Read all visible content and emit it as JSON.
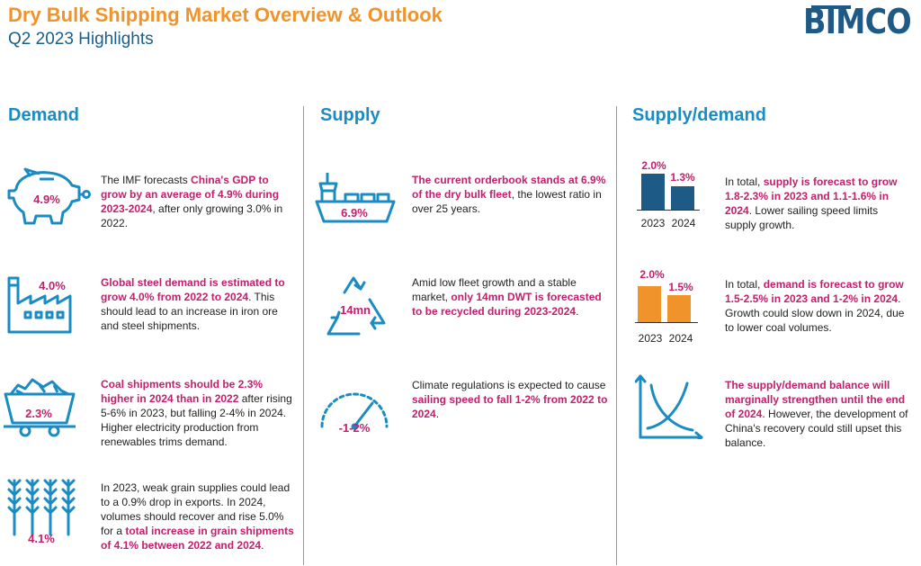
{
  "header": {
    "title": "Dry Bulk Shipping Market Overview & Outlook",
    "subtitle": "Q2 2023 Highlights",
    "logo_text": "BIMCO"
  },
  "colors": {
    "accent": "#f0932b",
    "blue": "#1a8cc3",
    "navy": "#1e5a86",
    "highlight": "#c41e6c"
  },
  "demand": {
    "heading": "Demand",
    "items": [
      {
        "icon": "piggy-bank-icon",
        "value": "4.9%",
        "parts": [
          "The IMF forecasts ",
          "China's GDP to grow by an average of 4.9% during 2023-2024",
          ", after only growing 3.0% in 2022."
        ]
      },
      {
        "icon": "factory-icon",
        "value": "4.0%",
        "parts": [
          "",
          "Global steel demand is estimated to grow 4.0% from 2022 to 2024",
          ". This should lead to an increase in iron ore and steel shipments."
        ]
      },
      {
        "icon": "coal-cart-icon",
        "value": "2.3%",
        "parts": [
          "",
          "Coal shipments should be 2.3% higher in 2024 than in 2022",
          " after rising 5-6% in 2023, but falling 2-4% in 2024. Higher electricity production from renewables trims demand."
        ]
      },
      {
        "icon": "wheat-icon",
        "value": "4.1%",
        "parts": [
          "In 2023, weak grain supplies could lead to a 0.9% drop in exports. In 2024, volumes should recover and rise 5.0% for a ",
          "total increase in grain shipments of 4.1% between 2022 and 2024",
          "."
        ]
      }
    ]
  },
  "supply": {
    "heading": "Supply",
    "items": [
      {
        "icon": "ship-icon",
        "value": "6.9%",
        "parts": [
          "",
          "The current orderbook stands at 6.9% of the dry bulk fleet",
          ", the lowest ratio in over 25 years."
        ]
      },
      {
        "icon": "recycle-icon",
        "value": "14mn",
        "parts": [
          "Amid low fleet growth and a stable market, ",
          "only 14mn DWT is forecasted to be recycled during 2023-2024",
          "."
        ]
      },
      {
        "icon": "speedometer-icon",
        "value": "-1-2%",
        "parts": [
          "Climate regulations is expected to cause ",
          "sailing speed to fall 1-2% from 2022 to 2024",
          "."
        ]
      }
    ]
  },
  "supply_demand": {
    "heading": "Supply/demand",
    "charts": [
      {
        "name": "supply",
        "color": "#1e5a86",
        "values": [
          2.0,
          1.3
        ],
        "labels": [
          "2.0%",
          "1.3%"
        ],
        "years": [
          "2023",
          "2024"
        ],
        "parts": [
          "In total, ",
          "supply is forecast to grow 1.8-2.3% in 2023 and 1.1-1.6% in 2024",
          ". Lower sailing speed limits supply growth."
        ]
      },
      {
        "name": "demand",
        "color": "#f0932b",
        "values": [
          2.0,
          1.5
        ],
        "labels": [
          "2.0%",
          "1.5%"
        ],
        "years": [
          "2023",
          "2024"
        ],
        "parts": [
          "In total, ",
          "demand is forecast to grow 1.5-2.5% in 2023 and 1-2% in 2024",
          ". Growth could slow down in 2024, due to lower coal volumes."
        ]
      }
    ],
    "balance": {
      "icon": "supply-demand-curve-icon",
      "parts": [
        "",
        "The supply/demand balance will marginally strengthen until the end of 2024",
        ". However, the development of China's recovery could still upset this balance."
      ]
    }
  }
}
